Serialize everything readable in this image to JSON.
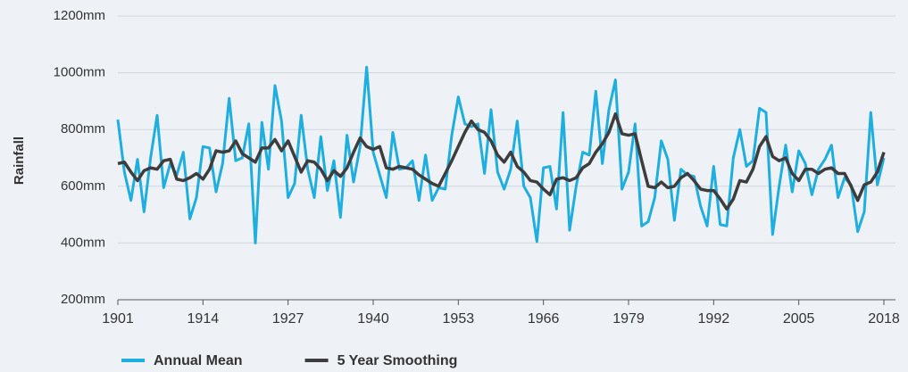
{
  "chart_data": {
    "type": "line",
    "y_label": "Rainfall",
    "x": [
      1901,
      1902,
      1903,
      1904,
      1905,
      1906,
      1907,
      1908,
      1909,
      1910,
      1911,
      1912,
      1913,
      1914,
      1915,
      1916,
      1917,
      1918,
      1919,
      1920,
      1921,
      1922,
      1923,
      1924,
      1925,
      1926,
      1927,
      1928,
      1929,
      1930,
      1931,
      1932,
      1933,
      1934,
      1935,
      1936,
      1937,
      1938,
      1939,
      1940,
      1941,
      1942,
      1943,
      1944,
      1945,
      1946,
      1947,
      1948,
      1949,
      1950,
      1951,
      1952,
      1953,
      1954,
      1955,
      1956,
      1957,
      1958,
      1959,
      1960,
      1961,
      1962,
      1963,
      1964,
      1965,
      1966,
      1967,
      1968,
      1969,
      1970,
      1971,
      1972,
      1973,
      1974,
      1975,
      1976,
      1977,
      1978,
      1979,
      1980,
      1981,
      1982,
      1983,
      1984,
      1985,
      1986,
      1987,
      1988,
      1989,
      1990,
      1991,
      1992,
      1993,
      1994,
      1995,
      1996,
      1997,
      1998,
      1999,
      2000,
      2001,
      2002,
      2003,
      2004,
      2005,
      2006,
      2007,
      2008,
      2009,
      2010,
      2011,
      2012,
      2013,
      2014,
      2015,
      2016,
      2017,
      2018
    ],
    "series": [
      {
        "name": "Annual Mean",
        "color": "#1eaee0",
        "values": [
          835,
          650,
          550,
          695,
          510,
          700,
          850,
          595,
          680,
          640,
          720,
          485,
          560,
          740,
          735,
          580,
          680,
          910,
          690,
          700,
          820,
          400,
          825,
          660,
          955,
          830,
          560,
          610,
          850,
          660,
          560,
          775,
          585,
          690,
          490,
          780,
          615,
          740,
          1020,
          720,
          640,
          560,
          790,
          660,
          665,
          690,
          550,
          710,
          550,
          595,
          590,
          780,
          915,
          820,
          810,
          820,
          645,
          870,
          650,
          590,
          660,
          830,
          600,
          560,
          405,
          665,
          670,
          520,
          860,
          445,
          600,
          720,
          710,
          935,
          680,
          870,
          975,
          590,
          650,
          820,
          460,
          475,
          560,
          760,
          695,
          480,
          660,
          640,
          635,
          530,
          460,
          670,
          465,
          460,
          700,
          800,
          670,
          690,
          875,
          860,
          430,
          600,
          745,
          580,
          725,
          680,
          570,
          660,
          695,
          745,
          560,
          630,
          605,
          440,
          510,
          860,
          605,
          700
        ]
      },
      {
        "name": "5 Year Smoothing",
        "color": "#3d3d3d",
        "values": [
          680,
          685,
          650,
          620,
          655,
          665,
          660,
          690,
          695,
          625,
          620,
          630,
          645,
          625,
          660,
          725,
          720,
          725,
          760,
          715,
          700,
          685,
          735,
          735,
          765,
          725,
          760,
          705,
          650,
          690,
          685,
          660,
          620,
          655,
          635,
          665,
          720,
          770,
          740,
          730,
          740,
          665,
          660,
          670,
          665,
          660,
          640,
          625,
          610,
          600,
          645,
          690,
          740,
          790,
          830,
          800,
          790,
          760,
          710,
          685,
          720,
          670,
          650,
          620,
          615,
          590,
          570,
          625,
          630,
          620,
          630,
          665,
          680,
          720,
          750,
          790,
          855,
          785,
          780,
          785,
          690,
          600,
          595,
          615,
          595,
          600,
          630,
          645,
          620,
          590,
          585,
          585,
          555,
          520,
          555,
          620,
          615,
          660,
          740,
          775,
          705,
          690,
          700,
          645,
          620,
          660,
          660,
          645,
          660,
          665,
          645,
          645,
          600,
          550,
          605,
          615,
          650,
          720
        ]
      }
    ],
    "xlim": [
      1901,
      2018
    ],
    "xticks": [
      1901,
      1914,
      1927,
      1940,
      1953,
      1966,
      1979,
      1992,
      2005,
      2018
    ],
    "ylim": [
      200,
      1200
    ],
    "yticks": [
      {
        "value": 200,
        "label": "200mm"
      },
      {
        "value": 400,
        "label": "400mm"
      },
      {
        "value": 600,
        "label": "600mm"
      },
      {
        "value": 800,
        "label": "800mm"
      },
      {
        "value": 1000,
        "label": "1000mm"
      },
      {
        "value": 1200,
        "label": "1200mm"
      }
    ],
    "grid": true,
    "legend": "bottom"
  }
}
